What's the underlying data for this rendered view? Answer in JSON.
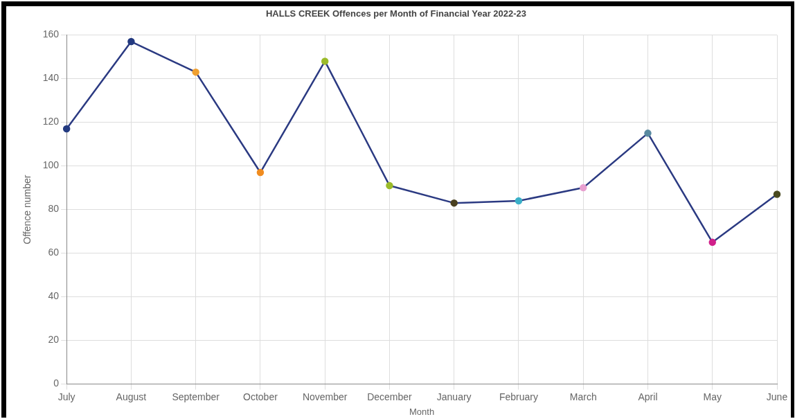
{
  "chart_data": {
    "type": "line",
    "title": "HALLS CREEK Offences per Month of Financial Year 2022-23",
    "xlabel": "Month",
    "ylabel": "Offence number",
    "categories": [
      "July",
      "August",
      "September",
      "October",
      "November",
      "December",
      "January",
      "February",
      "March",
      "April",
      "May",
      "June"
    ],
    "series": [
      {
        "color": "#2b3a82",
        "colors": [
          "#233a80",
          "#233a80",
          "#f0a030",
          "#f08c20",
          "#9bbb2a",
          "#9bbb2a",
          "#4a4020",
          "#3bb0c8",
          "#e8a0d0",
          "#5a8aa0",
          "#d0208a",
          "#4a4a20"
        ],
        "values": [
          117,
          157,
          143,
          97,
          148,
          91,
          83,
          84,
          90,
          115,
          65,
          87
        ]
      }
    ],
    "ylim": [
      0,
      160
    ],
    "yticks": [
      0,
      20,
      40,
      60,
      80,
      100,
      120,
      140,
      160
    ],
    "grid": true,
    "legend": false,
    "marker": "circle"
  }
}
